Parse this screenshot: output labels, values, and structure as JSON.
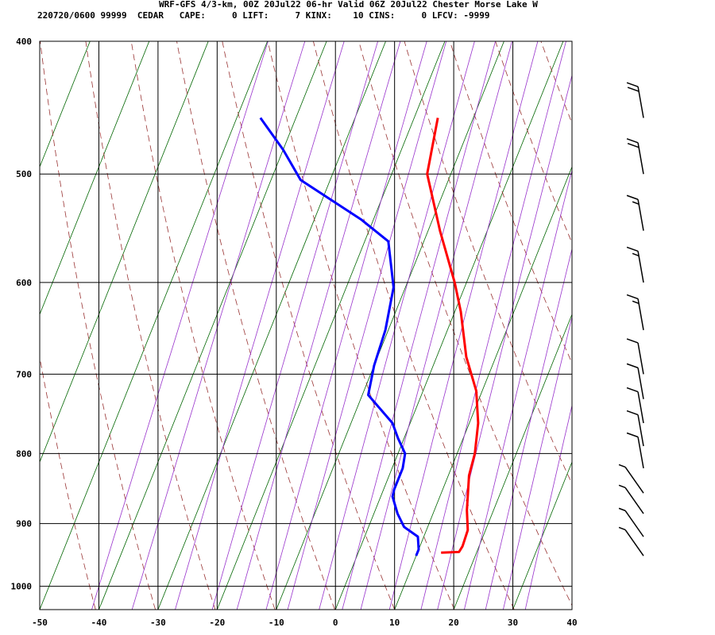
{
  "header": {
    "line1": "WRF-GFS 4/3-km, 00Z 20Jul22 06-hr Valid 06Z 20Jul22 Chester Morse Lake W",
    "line2": "220720/0600 99999  CEDAR   CAPE:     0 LIFT:     7 KINX:    10 CINS:     0 LFCV: -9999"
  },
  "chart_data": {
    "type": "skew-t",
    "x_ticks": [
      -50,
      -40,
      -30,
      -20,
      -10,
      0,
      10,
      20,
      30,
      40
    ],
    "xlim": [
      -50,
      40
    ],
    "y_ticks": [
      400,
      500,
      600,
      700,
      800,
      900,
      1000
    ],
    "ylim": [
      400,
      1040
    ],
    "log_pressure_axis": true,
    "grid": true,
    "series": [
      {
        "kind": "temperature",
        "color": "#ff0000",
        "points": [
          [
            945,
            14
          ],
          [
            944,
            17
          ],
          [
            935,
            17.2
          ],
          [
            910,
            17
          ],
          [
            880,
            15.5
          ],
          [
            830,
            13.5
          ],
          [
            800,
            13
          ],
          [
            760,
            11.5
          ],
          [
            720,
            9
          ],
          [
            680,
            5
          ],
          [
            630,
            1
          ],
          [
            600,
            -2
          ],
          [
            550,
            -8
          ],
          [
            500,
            -14
          ],
          [
            455,
            -16
          ]
        ]
      },
      {
        "kind": "dewpoint",
        "color": "#0000ff",
        "points": [
          [
            950,
            10
          ],
          [
            940,
            10
          ],
          [
            920,
            9
          ],
          [
            905,
            6
          ],
          [
            885,
            4
          ],
          [
            860,
            2
          ],
          [
            850,
            1.8
          ],
          [
            820,
            1.8
          ],
          [
            800,
            1.2
          ],
          [
            780,
            -1
          ],
          [
            760,
            -3
          ],
          [
            725,
            -9
          ],
          [
            690,
            -10
          ],
          [
            650,
            -10.5
          ],
          [
            605,
            -12
          ],
          [
            560,
            -16
          ],
          [
            540,
            -22
          ],
          [
            505,
            -35
          ],
          [
            480,
            -40
          ],
          [
            455,
            -46
          ]
        ]
      }
    ],
    "background_lines": {
      "dry_adiabats_color": "#993333",
      "moist_adiabats_color": "#993333",
      "skewed_isotherms_color": "#006600",
      "mixing_ratio_color": "#9933cc"
    },
    "wind_barbs": [
      {
        "p": 455,
        "speed_kt": 20
      },
      {
        "p": 500,
        "speed_kt": 20
      },
      {
        "p": 550,
        "speed_kt": 15
      },
      {
        "p": 600,
        "speed_kt": 15
      },
      {
        "p": 650,
        "speed_kt": 15
      },
      {
        "p": 700,
        "speed_kt": 10
      },
      {
        "p": 730,
        "speed_kt": 10
      },
      {
        "p": 760,
        "speed_kt": 10
      },
      {
        "p": 790,
        "speed_kt": 10
      },
      {
        "p": 820,
        "speed_kt": 10
      },
      {
        "p": 855,
        "speed_kt": 5
      },
      {
        "p": 885,
        "speed_kt": 5
      },
      {
        "p": 920,
        "speed_kt": 5
      },
      {
        "p": 950,
        "speed_kt": 5
      }
    ]
  }
}
